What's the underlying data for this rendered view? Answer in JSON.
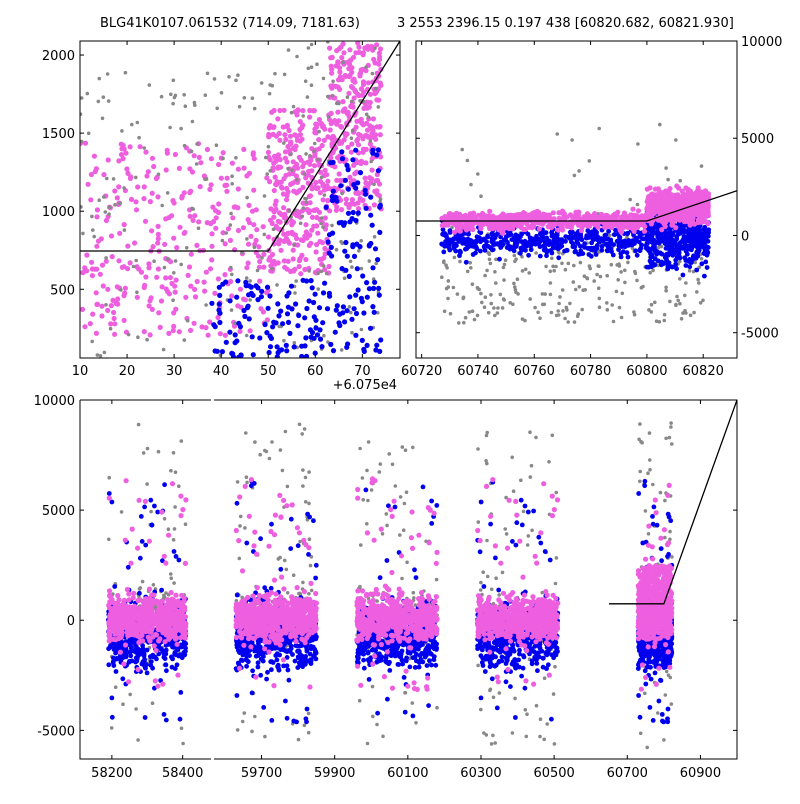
{
  "figure": {
    "title_left": "BLG41K0107.061532 (714.09, 7181.63)",
    "title_right": "3 2553 2396.15 0.197 438 [60820.682, 60821.930]"
  },
  "colors": {
    "series_a": "#888888",
    "series_b": "#0000ee",
    "series_c": "#ee5fe0",
    "model": "#000000",
    "axes": "#000000"
  },
  "chart_data": [
    {
      "type": "scatter",
      "panel": "top-left zoom",
      "x_offset_label": "+6.075e4",
      "xlim": [
        10,
        78
      ],
      "ylim": [
        60,
        2090
      ],
      "xticks": [
        10,
        20,
        30,
        40,
        50,
        60,
        70
      ],
      "yticks": [
        500,
        1000,
        1500,
        2000
      ],
      "model_line": {
        "x": [
          10,
          50,
          78
        ],
        "y": [
          745,
          745,
          2090
        ]
      },
      "series": [
        {
          "color_key": "series_c",
          "point_size": 2.6,
          "n": 950,
          "bands": [
            {
              "x": [
                10,
                50
              ],
              "y": [
                200,
                1450
              ]
            },
            {
              "x": [
                50,
                63
              ],
              "y": [
                600,
                1650
              ]
            },
            {
              "x": [
                63,
                74
              ],
              "y": [
                1000,
                2090
              ]
            }
          ]
        },
        {
          "color_key": "series_a",
          "point_size": 1.8,
          "n": 260,
          "bands": [
            {
              "x": [
                10,
                50
              ],
              "y": [
                60,
                1900
              ]
            },
            {
              "x": [
                50,
                74
              ],
              "y": [
                60,
                2090
              ]
            }
          ]
        },
        {
          "color_key": "series_b",
          "point_size": 2.6,
          "n": 230,
          "bands": [
            {
              "x": [
                38,
                62
              ],
              "y": [
                60,
                560
              ]
            },
            {
              "x": [
                62,
                74
              ],
              "y": [
                100,
                1400
              ]
            }
          ]
        }
      ]
    },
    {
      "type": "scatter",
      "panel": "top-right",
      "xlim": [
        60718,
        60832
      ],
      "ylim": [
        -6300,
        10000
      ],
      "xticks": [
        60720,
        60740,
        60760,
        60780,
        60800,
        60820
      ],
      "yticks": [
        -5000,
        0,
        5000,
        10000
      ],
      "model_line": {
        "x": [
          60718,
          60800,
          60832
        ],
        "y": [
          745,
          745,
          2300
        ]
      },
      "series": [
        {
          "color_key": "series_a",
          "point_size": 1.8,
          "n": 300,
          "bands": [
            {
              "x": [
                60727,
                60822
              ],
              "y": [
                -4500,
                5800
              ]
            }
          ]
        },
        {
          "color_key": "series_b",
          "point_size": 2.4,
          "n": 900,
          "bands": [
            {
              "x": [
                60727,
                60800
              ],
              "y": [
                -1200,
                600
              ]
            },
            {
              "x": [
                60800,
                60822
              ],
              "y": [
                -2000,
                2000
              ]
            }
          ]
        },
        {
          "color_key": "series_c",
          "point_size": 2.6,
          "n": 1100,
          "bands": [
            {
              "x": [
                60727,
                60800
              ],
              "y": [
                200,
                1300
              ]
            },
            {
              "x": [
                60800,
                60822
              ],
              "y": [
                400,
                2600
              ]
            }
          ]
        }
      ]
    },
    {
      "type": "scatter",
      "panel": "bottom full light curve (broken x-axis)",
      "ylim": [
        -6300,
        10000
      ],
      "yticks": [
        -5000,
        0,
        5000,
        10000
      ],
      "segments": [
        {
          "xlim": [
            58110,
            58480
          ],
          "xticks": [
            58200,
            58400
          ]
        },
        {
          "xlim": [
            59570,
            61000
          ],
          "xticks": [
            59700,
            59900,
            60100,
            60300,
            60500,
            60700,
            60900
          ]
        }
      ],
      "model_line": {
        "x": [
          60650,
          60800,
          61000
        ],
        "y": [
          745,
          745,
          10000
        ]
      },
      "seasons": [
        {
          "x": [
            58190,
            58410
          ]
        },
        {
          "x": [
            59630,
            59850
          ]
        },
        {
          "x": [
            59960,
            60180
          ]
        },
        {
          "x": [
            60290,
            60510
          ]
        },
        {
          "x": [
            60730,
            60822
          ]
        }
      ],
      "series": [
        {
          "color_key": "series_a",
          "point_size": 1.8,
          "n": 1400,
          "y_band": [
            -5800,
            9000
          ]
        },
        {
          "color_key": "series_b",
          "point_size": 2.4,
          "n": 2600,
          "y_band": [
            -2800,
            1400
          ]
        },
        {
          "color_key": "series_c",
          "point_size": 2.6,
          "n": 3200,
          "y_band": [
            -1300,
            1500
          ]
        }
      ]
    }
  ]
}
